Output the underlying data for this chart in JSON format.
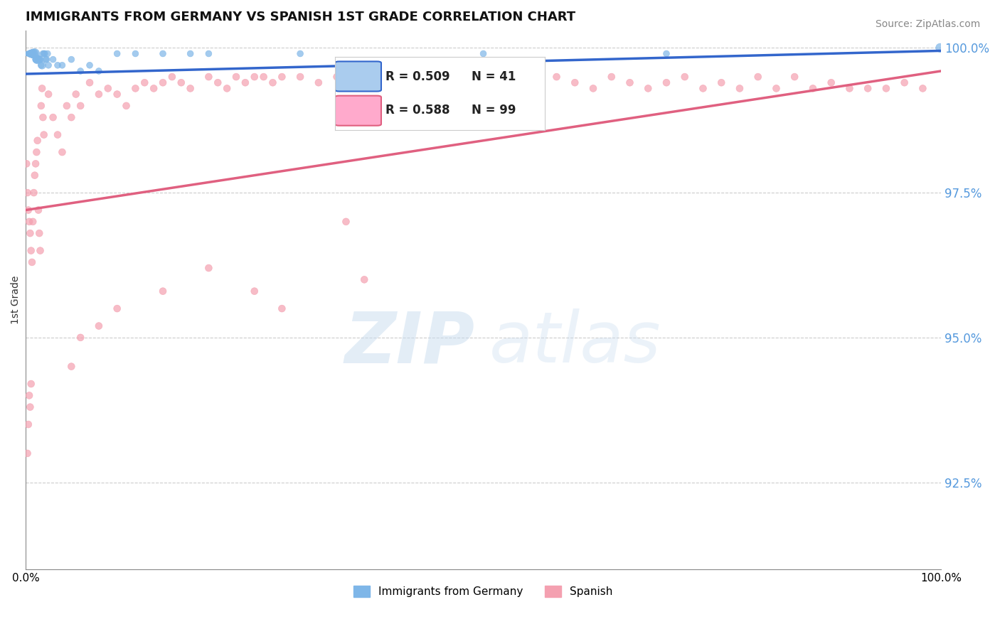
{
  "title": "IMMIGRANTS FROM GERMANY VS SPANISH 1ST GRADE CORRELATION CHART",
  "source": "Source: ZipAtlas.com",
  "ylabel": "1st Grade",
  "ytick_labels": [
    "100.0%",
    "97.5%",
    "95.0%",
    "92.5%"
  ],
  "ytick_values": [
    1.0,
    0.975,
    0.95,
    0.925
  ],
  "legend_label1": "Immigrants from Germany",
  "legend_label2": "Spanish",
  "R1": 0.509,
  "N1": 41,
  "R2": 0.588,
  "N2": 99,
  "color_blue": "#7EB6E8",
  "color_pink": "#F4A0B0",
  "color_blue_line": "#3366CC",
  "color_pink_line": "#E06080",
  "color_ytick": "#5599DD",
  "blue_points_x": [
    0.001,
    0.002,
    0.003,
    0.004,
    0.005,
    0.006,
    0.007,
    0.008,
    0.009,
    0.01,
    0.011,
    0.012,
    0.013,
    0.014,
    0.015,
    0.016,
    0.017,
    0.018,
    0.019,
    0.02,
    0.021,
    0.022,
    0.023,
    0.024,
    0.025,
    0.03,
    0.035,
    0.04,
    0.05,
    0.06,
    0.07,
    0.08,
    0.1,
    0.12,
    0.15,
    0.18,
    0.2,
    0.3,
    0.5,
    0.7,
    0.999
  ],
  "blue_points_y": [
    0.999,
    0.999,
    0.999,
    0.999,
    0.999,
    0.999,
    0.999,
    0.999,
    0.999,
    0.999,
    0.998,
    0.998,
    0.998,
    0.998,
    0.998,
    0.998,
    0.997,
    0.997,
    0.999,
    0.999,
    0.999,
    0.998,
    0.998,
    0.999,
    0.997,
    0.998,
    0.997,
    0.997,
    0.998,
    0.996,
    0.997,
    0.996,
    0.999,
    0.999,
    0.999,
    0.999,
    0.999,
    0.999,
    0.999,
    0.999,
    1.0
  ],
  "blue_sizes": [
    20,
    20,
    30,
    40,
    50,
    60,
    70,
    80,
    90,
    100,
    40,
    60,
    80,
    40,
    60,
    40,
    40,
    60,
    40,
    40,
    40,
    40,
    40,
    40,
    40,
    40,
    40,
    40,
    40,
    40,
    40,
    40,
    40,
    40,
    40,
    40,
    40,
    40,
    40,
    40,
    80
  ],
  "pink_points_x": [
    0.001,
    0.002,
    0.003,
    0.004,
    0.005,
    0.006,
    0.007,
    0.008,
    0.009,
    0.01,
    0.011,
    0.012,
    0.013,
    0.014,
    0.015,
    0.016,
    0.017,
    0.018,
    0.019,
    0.02,
    0.025,
    0.03,
    0.035,
    0.04,
    0.045,
    0.05,
    0.055,
    0.06,
    0.07,
    0.08,
    0.09,
    0.1,
    0.11,
    0.12,
    0.13,
    0.14,
    0.15,
    0.16,
    0.17,
    0.18,
    0.2,
    0.21,
    0.22,
    0.23,
    0.24,
    0.25,
    0.26,
    0.27,
    0.28,
    0.3,
    0.32,
    0.34,
    0.36,
    0.38,
    0.4,
    0.42,
    0.44,
    0.46,
    0.48,
    0.5,
    0.52,
    0.54,
    0.56,
    0.58,
    0.6,
    0.62,
    0.64,
    0.66,
    0.68,
    0.7,
    0.72,
    0.74,
    0.76,
    0.78,
    0.8,
    0.82,
    0.84,
    0.86,
    0.88,
    0.9,
    0.92,
    0.94,
    0.96,
    0.98,
    0.35,
    0.37,
    0.1,
    0.15,
    0.2,
    0.25,
    0.28,
    0.05,
    0.06,
    0.08,
    0.002,
    0.003,
    0.004,
    0.005,
    0.006
  ],
  "pink_points_y": [
    0.98,
    0.975,
    0.972,
    0.97,
    0.968,
    0.965,
    0.963,
    0.97,
    0.975,
    0.978,
    0.98,
    0.982,
    0.984,
    0.972,
    0.968,
    0.965,
    0.99,
    0.993,
    0.988,
    0.985,
    0.992,
    0.988,
    0.985,
    0.982,
    0.99,
    0.988,
    0.992,
    0.99,
    0.994,
    0.992,
    0.993,
    0.992,
    0.99,
    0.993,
    0.994,
    0.993,
    0.994,
    0.995,
    0.994,
    0.993,
    0.995,
    0.994,
    0.993,
    0.995,
    0.994,
    0.995,
    0.995,
    0.994,
    0.995,
    0.995,
    0.994,
    0.995,
    0.995,
    0.993,
    0.995,
    0.993,
    0.995,
    0.994,
    0.995,
    0.995,
    0.994,
    0.995,
    0.993,
    0.995,
    0.994,
    0.993,
    0.995,
    0.994,
    0.993,
    0.994,
    0.995,
    0.993,
    0.994,
    0.993,
    0.995,
    0.993,
    0.995,
    0.993,
    0.994,
    0.993,
    0.993,
    0.993,
    0.994,
    0.993,
    0.97,
    0.96,
    0.955,
    0.958,
    0.962,
    0.958,
    0.955,
    0.945,
    0.95,
    0.952,
    0.93,
    0.935,
    0.94,
    0.938,
    0.942
  ],
  "pink_sizes": [
    50,
    50,
    50,
    50,
    50,
    50,
    50,
    50,
    50,
    50,
    50,
    50,
    50,
    50,
    50,
    50,
    50,
    50,
    50,
    50,
    50,
    50,
    50,
    50,
    50,
    50,
    50,
    50,
    50,
    50,
    50,
    50,
    50,
    50,
    50,
    50,
    50,
    50,
    50,
    50,
    50,
    50,
    50,
    50,
    50,
    50,
    50,
    50,
    50,
    50,
    50,
    50,
    50,
    50,
    50,
    50,
    50,
    50,
    50,
    50,
    50,
    50,
    50,
    50,
    50,
    50,
    50,
    50,
    50,
    50,
    50,
    50,
    50,
    50,
    50,
    50,
    50,
    50,
    50,
    50,
    50,
    50,
    50,
    50,
    50,
    50,
    50,
    50,
    50,
    50,
    50,
    50,
    50,
    50,
    50,
    50,
    50,
    50,
    50
  ],
  "xlim": [
    0.0,
    1.0
  ],
  "ylim": [
    0.91,
    1.003
  ],
  "blue_line_x": [
    0.0,
    1.0
  ],
  "blue_line_y": [
    0.9955,
    0.9995
  ],
  "pink_line_x": [
    0.0,
    1.0
  ],
  "pink_line_y": [
    0.972,
    0.996
  ],
  "legend_box_color_blue": "#AACCEE",
  "legend_box_color_pink": "#FFAACC",
  "background_color": "#FFFFFF"
}
